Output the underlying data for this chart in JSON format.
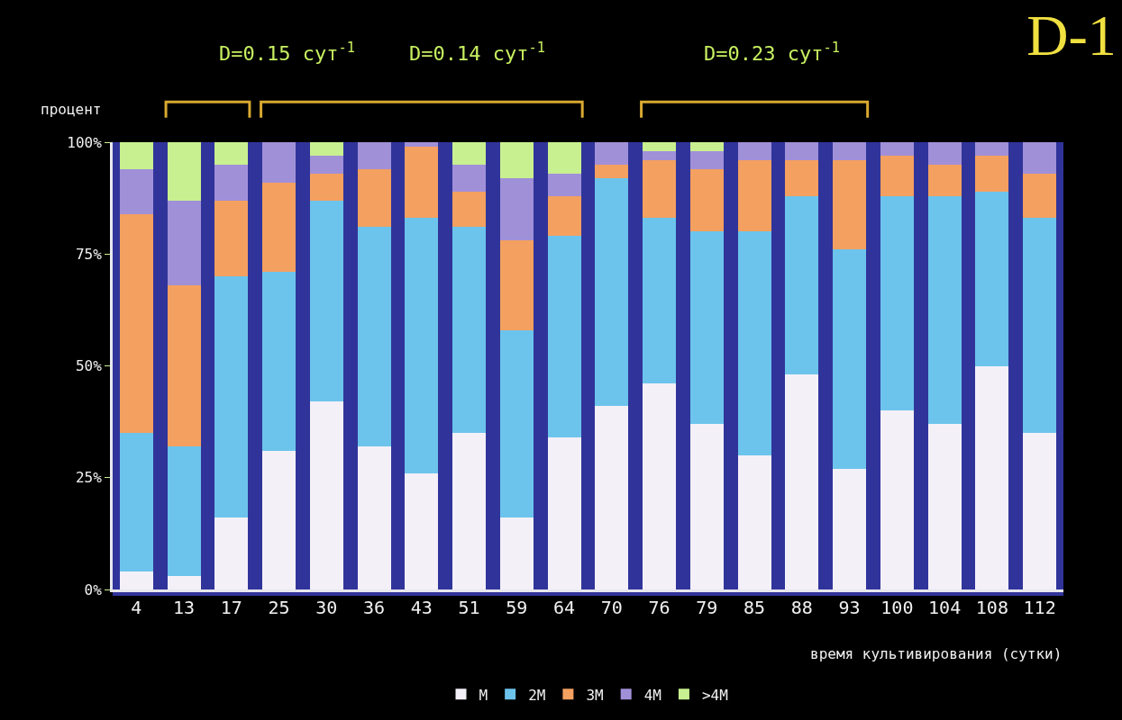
{
  "chart_data": {
    "type": "bar",
    "stacked": true,
    "title": "D-1",
    "xlabel": "время культивирования (сутки)",
    "ylabel": "процент",
    "categories": [
      "4",
      "13",
      "17",
      "25",
      "30",
      "36",
      "43",
      "51",
      "59",
      "64",
      "70",
      "76",
      "79",
      "85",
      "88",
      "93",
      "100",
      "104",
      "108",
      "112"
    ],
    "series": [
      {
        "name": "M",
        "color": "#f4f0f8",
        "values": [
          4,
          3,
          16,
          31,
          42,
          32,
          26,
          35,
          16,
          34,
          41,
          46,
          37,
          30,
          48,
          27,
          40,
          37,
          50,
          35
        ]
      },
      {
        "name": "2M",
        "color": "#6cc4ec",
        "values": [
          31,
          29,
          54,
          40,
          45,
          49,
          57,
          46,
          42,
          45,
          51,
          37,
          43,
          50,
          40,
          49,
          48,
          51,
          39,
          48
        ]
      },
      {
        "name": "3M",
        "color": "#f4a060",
        "values": [
          49,
          36,
          17,
          20,
          6,
          13,
          16,
          8,
          20,
          9,
          3,
          13,
          14,
          16,
          8,
          20,
          9,
          7,
          8,
          10
        ]
      },
      {
        "name": "4M",
        "color": "#a090d8",
        "values": [
          10,
          19,
          8,
          9,
          4,
          6,
          1,
          6,
          14,
          5,
          5,
          2,
          4,
          4,
          4,
          4,
          3,
          5,
          3,
          7
        ]
      },
      {
        "name": ">4M",
        "color": "#c8f090",
        "values": [
          6,
          13,
          5,
          0,
          3,
          0,
          0,
          5,
          8,
          7,
          0,
          2,
          2,
          0,
          0,
          0,
          0,
          0,
          0,
          0
        ]
      }
    ],
    "ylim": [
      0,
      100
    ],
    "yticks": [
      {
        "value": 0,
        "label": "0%"
      },
      {
        "value": 25,
        "label": "25%"
      },
      {
        "value": 50,
        "label": "50%"
      },
      {
        "value": 75,
        "label": "75%"
      },
      {
        "value": 100,
        "label": "100%"
      }
    ],
    "annotations": [
      "D=0.15 сут$^{-1}$",
      "D=0.14 сут$^{-1}$",
      "D=0.23 сут$^{-1}$"
    ],
    "legend": "bottom",
    "grid": false
  }
}
